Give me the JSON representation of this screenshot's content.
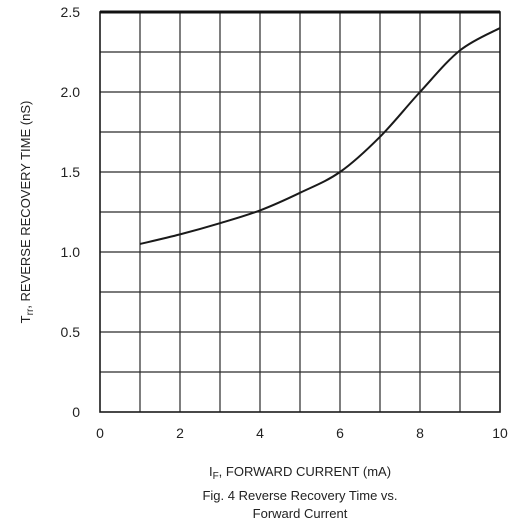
{
  "chart_data": {
    "type": "line",
    "x_ticks": [
      "0",
      "2",
      "4",
      "6",
      "8",
      "10"
    ],
    "y_ticks": [
      "0",
      "0.5",
      "1.0",
      "1.5",
      "2.0",
      "2.5"
    ],
    "xlim": [
      0,
      10
    ],
    "ylim": [
      0,
      2.5
    ],
    "grid": true,
    "xlabel_main": "I",
    "xlabel_sub": "F",
    "xlabel_rest": ", FORWARD CURRENT (mA)",
    "ylabel_main": "T",
    "ylabel_sub": "rr",
    "ylabel_rest": ", REVERSE RECOVERY TIME (nS)",
    "series": [
      {
        "x": [
          1,
          2,
          3,
          4,
          5,
          6,
          7,
          8,
          9,
          10
        ],
        "y": [
          1.05,
          1.11,
          1.18,
          1.26,
          1.37,
          1.5,
          1.72,
          2.0,
          2.26,
          2.4
        ]
      }
    ]
  },
  "caption": {
    "line1": "Fig. 4  Reverse Recovery Time vs.",
    "line2": "Forward Current"
  }
}
